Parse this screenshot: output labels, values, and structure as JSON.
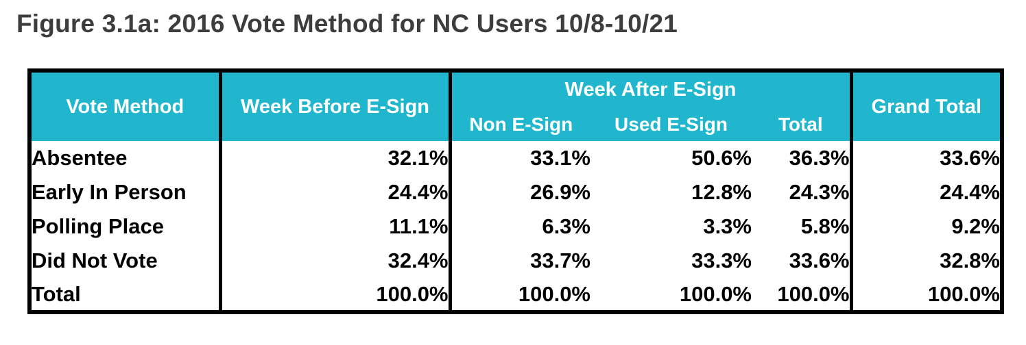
{
  "figure": {
    "title": "Figure 3.1a: 2016 Vote Method for NC Users 10/8-10/21"
  },
  "table": {
    "header": {
      "vote_method": "Vote Method",
      "week_before": "Week Before E-Sign",
      "week_after_group": "Week After E-Sign",
      "sub_non_esign": "Non E-Sign",
      "sub_used_esign": "Used E-Sign",
      "sub_total": "Total",
      "grand_total": "Grand Total"
    },
    "rows": [
      {
        "label": "Absentee",
        "week_before": "32.1%",
        "non_esign": "33.1%",
        "used_esign": "50.6%",
        "total": "36.3%",
        "grand_total": "33.6%"
      },
      {
        "label": "Early In Person",
        "week_before": "24.4%",
        "non_esign": "26.9%",
        "used_esign": "12.8%",
        "total": "24.3%",
        "grand_total": "24.4%"
      },
      {
        "label": "Polling Place",
        "week_before": "11.1%",
        "non_esign": "6.3%",
        "used_esign": "3.3%",
        "total": "5.8%",
        "grand_total": "9.2%"
      },
      {
        "label": "Did Not Vote",
        "week_before": "32.4%",
        "non_esign": "33.7%",
        "used_esign": "33.3%",
        "total": "33.6%",
        "grand_total": "32.8%"
      },
      {
        "label": "Total",
        "week_before": "100.0%",
        "non_esign": "100.0%",
        "used_esign": "100.0%",
        "total": "100.0%",
        "grand_total": "100.0%"
      }
    ]
  },
  "colors": {
    "header_background": "#20b6ce",
    "header_text": "#ffffff",
    "border": "#000000",
    "title_text": "#3d3d3d",
    "data_text": "#000000",
    "page_background": "#ffffff"
  },
  "chart_data": {
    "type": "table",
    "title": "Figure 3.1a: 2016 Vote Method for NC Users 10/8-10/21",
    "unit": "percent",
    "columns": [
      "Vote Method",
      "Week Before E-Sign",
      "Week After E-Sign: Non E-Sign",
      "Week After E-Sign: Used E-Sign",
      "Week After E-Sign: Total",
      "Grand Total"
    ],
    "rows": [
      {
        "vote_method": "Absentee",
        "week_before": 32.1,
        "week_after_non_esign": 33.1,
        "week_after_used_esign": 50.6,
        "week_after_total": 36.3,
        "grand_total": 33.6
      },
      {
        "vote_method": "Early In Person",
        "week_before": 24.4,
        "week_after_non_esign": 26.9,
        "week_after_used_esign": 12.8,
        "week_after_total": 24.3,
        "grand_total": 24.4
      },
      {
        "vote_method": "Polling Place",
        "week_before": 11.1,
        "week_after_non_esign": 6.3,
        "week_after_used_esign": 3.3,
        "week_after_total": 5.8,
        "grand_total": 9.2
      },
      {
        "vote_method": "Did Not Vote",
        "week_before": 32.4,
        "week_after_non_esign": 33.7,
        "week_after_used_esign": 33.3,
        "week_after_total": 33.6,
        "grand_total": 32.8
      },
      {
        "vote_method": "Total",
        "week_before": 100.0,
        "week_after_non_esign": 100.0,
        "week_after_used_esign": 100.0,
        "week_after_total": 100.0,
        "grand_total": 100.0
      }
    ]
  }
}
